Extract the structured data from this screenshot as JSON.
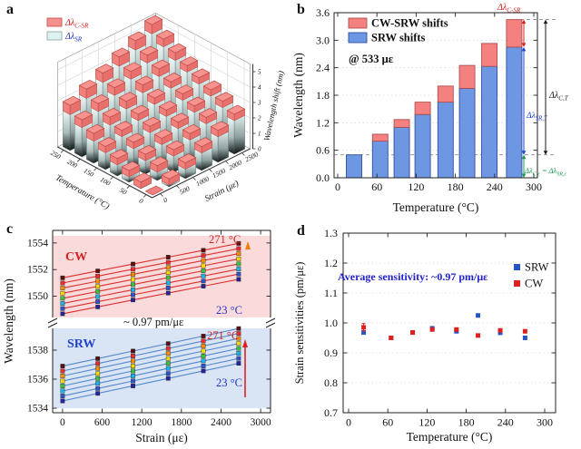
{
  "panels": {
    "a": "a",
    "b": "b",
    "c": "c",
    "d": "d"
  },
  "chart_data": [
    {
      "id": "a",
      "type": "bar3d",
      "xlabel": "Strain (με)",
      "ylabel": "Temperature (°C)",
      "zlabel": "Wavelength shift (nm)",
      "temp_ticks": [
        0,
        50,
        100,
        150,
        200,
        250
      ],
      "strain_ticks": [
        0,
        500,
        1000,
        1500,
        2000,
        2500
      ],
      "z_ticks": [
        0,
        1,
        2,
        3,
        4,
        5
      ],
      "legend": [
        {
          "label": "Δλ_C-SR",
          "swatch": "#f5918d",
          "swatch_edge": "#cc4444",
          "text_color": "#d42020"
        },
        {
          "label": "Δλ_SR",
          "swatch": "#def2f0",
          "swatch_edge": "#8aa0a0",
          "text_color": "#2233bb"
        }
      ],
      "temperatures_c": [
        23,
        65,
        98,
        130,
        165,
        198,
        232,
        270
      ],
      "strains_ue": [
        0,
        533,
        1067,
        1600,
        2133,
        2667
      ],
      "total_shift_nm": [
        [
          0.0,
          0.52,
          1.03,
          1.55,
          2.07,
          2.59
        ],
        [
          0.43,
          0.95,
          1.46,
          1.98,
          2.5,
          3.02
        ],
        [
          0.76,
          1.28,
          1.79,
          2.31,
          2.83,
          3.35
        ],
        [
          1.13,
          1.65,
          2.16,
          2.68,
          3.2,
          3.72
        ],
        [
          1.5,
          2.02,
          2.53,
          3.05,
          3.57,
          4.09
        ],
        [
          1.93,
          2.45,
          2.96,
          3.48,
          4.0,
          4.52
        ],
        [
          2.4,
          2.92,
          3.43,
          3.95,
          4.47,
          4.99
        ],
        [
          2.93,
          3.45,
          3.96,
          4.48,
          5.0,
          5.52
        ]
      ],
      "cw_srw_cap_nm": [
        0.1,
        0.15,
        0.17,
        0.27,
        0.35,
        0.5,
        0.5,
        0.6
      ]
    },
    {
      "id": "b",
      "type": "bar",
      "stacked": true,
      "xlabel": "Temperature (°C)",
      "ylabel": "Wavelength (nm)",
      "xlim": [
        0,
        315
      ],
      "ylim": [
        0,
        3.6
      ],
      "xticks": [
        0,
        60,
        120,
        180,
        240,
        300
      ],
      "yticks": [
        "0.0",
        "0.6",
        "1.2",
        "1.8",
        "2.4",
        "3.0",
        "3.6"
      ],
      "annotation": "@ 533 με",
      "dashed_line_nm": 0.5,
      "temperatures_c": [
        25,
        65,
        98,
        130,
        165,
        198,
        232,
        270
      ],
      "series": [
        {
          "name": "SRW shifts",
          "color": "#6d97e3",
          "edge": "#2f4f9f",
          "values": [
            0.5,
            0.8,
            1.1,
            1.38,
            1.65,
            1.95,
            2.43,
            2.85
          ]
        },
        {
          "name": "CW-SRW shifts",
          "color": "#f58080",
          "edge": "#b05050",
          "values": [
            0.0,
            0.15,
            0.17,
            0.27,
            0.35,
            0.5,
            0.5,
            0.6
          ]
        }
      ],
      "side_annotations": {
        "cw_sr": {
          "label": "Δλ_C-SR",
          "color": "#d42020"
        },
        "c_t": {
          "label": "Δλ_C,T",
          "color": "#1a1a1a"
        },
        "sr_t": {
          "label": "Δλ_SR,T",
          "color": "#2244cc"
        },
        "eq": {
          "label": "Δλ_C,ε_ = Δλ_SR,ε",
          "color": "#1a9850"
        }
      }
    },
    {
      "id": "c",
      "type": "line",
      "xlabel": "Strain (με)",
      "ylabel": "Wavelength (nm)",
      "xticks": [
        0,
        600,
        1200,
        1800,
        2400,
        3000
      ],
      "strains_ue": [
        0,
        533,
        1067,
        1600,
        2133,
        2667
      ],
      "temperatures_c": [
        23,
        58,
        94,
        129,
        165,
        200,
        236,
        271
      ],
      "slope_pm_per_ue": 0.97,
      "slope_label": "~ 0.97 pm/με",
      "temp_low_label": "23 °C",
      "temp_high_label": "271 °C",
      "marker_colors": [
        "#25259a",
        "#2f52cf",
        "#18b4e8",
        "#3fbf3f",
        "#f5d800",
        "#f59000",
        "#ee2c2c",
        "#5a1010"
      ],
      "groups": [
        {
          "name": "CW",
          "band": "#fadada",
          "line_color": "#d93030",
          "name_color": "#d42020",
          "yticks": [
            1550,
            1552,
            1554
          ],
          "intercepts_nm": [
            1548.68,
            1549.07,
            1549.45,
            1549.84,
            1550.22,
            1550.61,
            1550.99,
            1551.38
          ]
        },
        {
          "name": "SRW",
          "band": "#d9e4f5",
          "line_color": "#5588cc",
          "name_color": "#2244cc",
          "yticks": [
            1534,
            1536,
            1538
          ],
          "intercepts_nm": [
            1534.5,
            1534.84,
            1535.19,
            1535.53,
            1535.87,
            1536.22,
            1536.56,
            1536.9
          ]
        }
      ]
    },
    {
      "id": "d",
      "type": "scatter",
      "xlabel": "Temperature (°C)",
      "ylabel": "Strain sensitivities (pm/με)",
      "xlim": [
        0,
        300
      ],
      "ylim": [
        0.7,
        1.3
      ],
      "xticks": [
        0,
        60,
        120,
        180,
        240,
        300
      ],
      "yticks": [
        "0.7",
        "0.8",
        "0.9",
        "1.0",
        "1.1",
        "1.2",
        "1.3"
      ],
      "annotation": "Average sensitivity: ~0.97 pm/με",
      "annotation_color": "#2222cc",
      "temperatures_c": [
        23,
        65,
        98,
        128,
        165,
        198,
        232,
        270
      ],
      "series": [
        {
          "name": "SRW",
          "color": "#2456c8",
          "values": [
            0.968,
            0.95,
            0.968,
            0.982,
            0.972,
            1.025,
            0.967,
            0.95
          ],
          "errors": [
            0.004,
            0.003,
            0.003,
            0.004,
            0.003,
            0.004,
            0.003,
            0.004
          ]
        },
        {
          "name": "CW",
          "color": "#e02020",
          "values": [
            0.985,
            0.95,
            0.968,
            0.978,
            0.978,
            0.958,
            0.975,
            0.972
          ],
          "errors": [
            0.013,
            0.003,
            0.004,
            0.004,
            0.004,
            0.004,
            0.003,
            0.005
          ]
        }
      ]
    }
  ]
}
